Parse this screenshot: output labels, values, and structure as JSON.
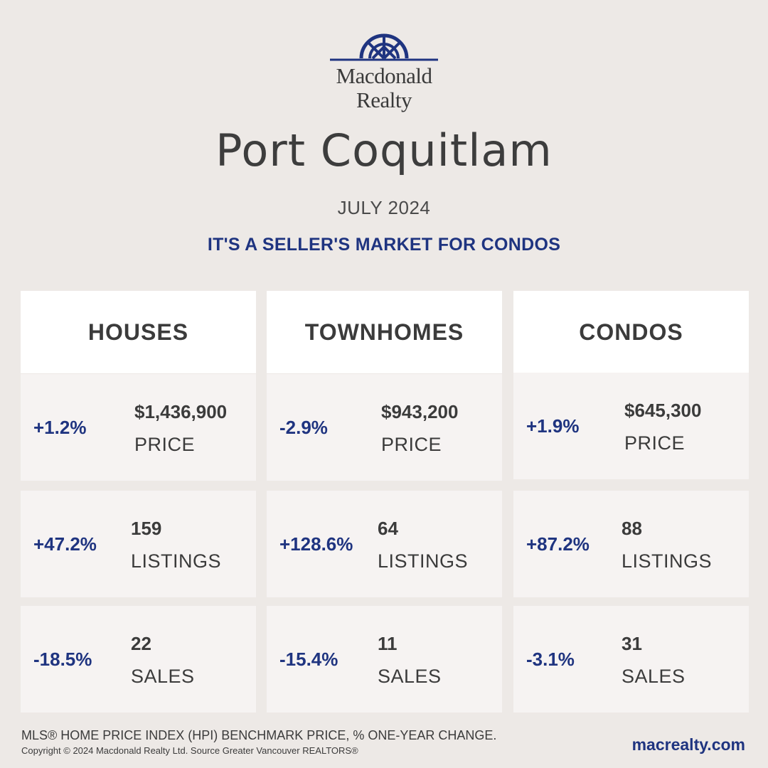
{
  "brand": {
    "line1": "Macdonald",
    "line2": "Realty"
  },
  "colors": {
    "navy": "#1f3480",
    "background": "#ede9e6",
    "card": "#f6f3f2",
    "header_card": "#ffffff"
  },
  "city": "Port Coquitlam",
  "period": "JULY 2024",
  "tagline": "IT'S A SELLER'S MARKET FOR CONDOS",
  "columns": [
    {
      "title": "HOUSES",
      "stats": [
        {
          "change": "+1.2%",
          "value": "$1,436,900",
          "label": "PRICE"
        },
        {
          "change": "+47.2%",
          "value": "159",
          "label": "LISTINGS"
        },
        {
          "change": "-18.5%",
          "value": "22",
          "label": "SALES"
        }
      ]
    },
    {
      "title": "TOWNHOMES",
      "stats": [
        {
          "change": "-2.9%",
          "value": "$943,200",
          "label": "PRICE"
        },
        {
          "change": "+128.6%",
          "value": "64",
          "label": "LISTINGS"
        },
        {
          "change": "-15.4%",
          "value": "11",
          "label": "SALES"
        }
      ]
    },
    {
      "title": "CONDOS",
      "stats": [
        {
          "change": "+1.9%",
          "value": "$645,300",
          "label": "PRICE"
        },
        {
          "change": "+87.2%",
          "value": "88",
          "label": "LISTINGS"
        },
        {
          "change": "-3.1%",
          "value": "31",
          "label": "SALES"
        }
      ]
    }
  ],
  "footer": {
    "note": "MLS® HOME PRICE INDEX (HPI) BENCHMARK PRICE, % ONE-YEAR CHANGE.",
    "copyright": "Copyright © 2024 Macdonald Realty Ltd. Source Greater Vancouver REALTORS®",
    "website": "macrealty.com"
  }
}
